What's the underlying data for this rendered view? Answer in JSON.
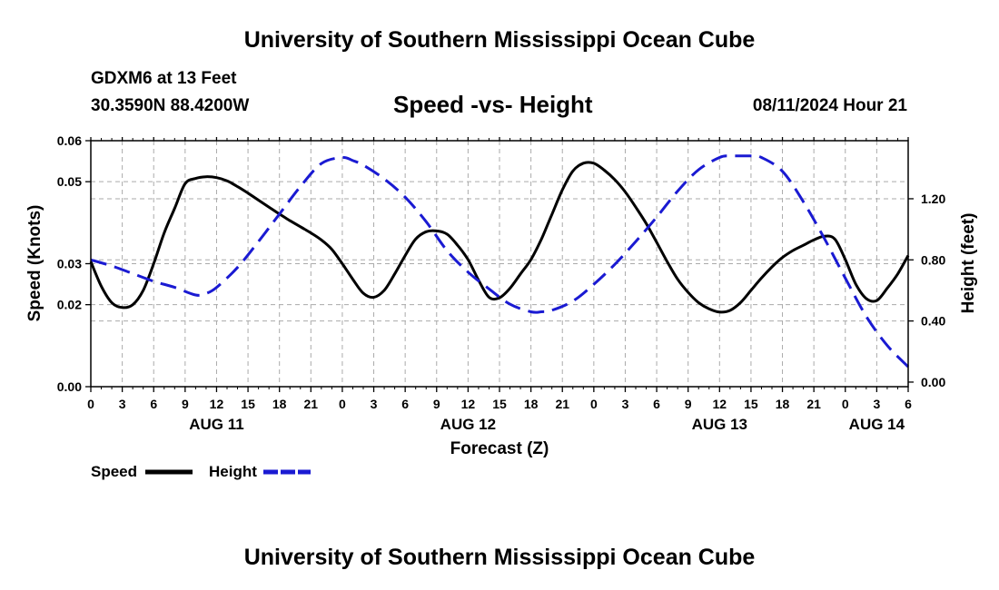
{
  "header": {
    "title": "University of Southern Mississippi Ocean Cube",
    "station": "GDXM6 at 13 Feet",
    "coordinates": "30.3590N  88.4200W",
    "subtitle": "Speed -vs- Height",
    "datetime": "08/11/2024 Hour 21"
  },
  "footer": {
    "title": "University of Southern Mississippi Ocean Cube"
  },
  "chart_data": {
    "type": "line",
    "title": "Speed -vs- Height",
    "xlabel": "Forecast (Z)",
    "ylabel": "Speed (Knots)",
    "y2label": "Height (feet)",
    "x_range_hours": [
      0,
      78
    ],
    "ylim": [
      0,
      0.06
    ],
    "y2lim": [
      -0.03,
      1.58
    ],
    "y_ticks": [
      "0.00",
      "0.02",
      "0.03",
      "0.05",
      "0.06"
    ],
    "y_tick_values": [
      0,
      0.02,
      0.03,
      0.05,
      0.06
    ],
    "y2_ticks": [
      "0.00",
      "0.40",
      "0.80",
      "1.20"
    ],
    "y2_tick_values": [
      0.0,
      0.4,
      0.8,
      1.2
    ],
    "x_ticks": [
      "0",
      "3",
      "6",
      "9",
      "12",
      "15",
      "18",
      "21",
      "0",
      "3",
      "6",
      "9",
      "12",
      "15",
      "18",
      "21",
      "0",
      "3",
      "6",
      "9",
      "12",
      "15",
      "18",
      "21",
      "0",
      "3",
      "6"
    ],
    "x_tick_hours": [
      0,
      3,
      6,
      9,
      12,
      15,
      18,
      21,
      24,
      27,
      30,
      33,
      36,
      39,
      42,
      45,
      48,
      51,
      54,
      57,
      60,
      63,
      66,
      69,
      72,
      75,
      78
    ],
    "date_labels": [
      {
        "label": "AUG 11",
        "hour": 12
      },
      {
        "label": "AUG 12",
        "hour": 36
      },
      {
        "label": "AUG 13",
        "hour": 60
      },
      {
        "label": "AUG 14",
        "hour": 75
      }
    ],
    "grid": true,
    "legend": [
      {
        "name": "Speed",
        "color": "#000000",
        "style": "solid"
      },
      {
        "name": "Height",
        "color": "#1a1ad2",
        "style": "dashed"
      }
    ],
    "series": [
      {
        "name": "Speed",
        "axis": "left",
        "color": "#000000",
        "x": [
          0,
          1,
          2,
          3,
          4,
          5,
          6,
          7,
          8,
          9,
          10,
          11,
          12,
          13,
          14,
          15,
          16,
          17,
          18,
          19,
          20,
          21,
          22,
          23,
          24,
          25,
          26,
          27,
          28,
          29,
          30,
          31,
          32,
          33,
          34,
          35,
          36,
          37,
          38,
          39,
          40,
          41,
          42,
          43,
          44,
          45,
          46,
          47,
          48,
          49,
          50,
          51,
          52,
          53,
          54,
          55,
          56,
          57,
          58,
          59,
          60,
          61,
          62,
          63,
          64,
          65,
          66,
          67,
          68,
          69,
          70,
          71,
          72,
          73,
          74,
          75,
          76,
          77,
          78
        ],
        "values": [
          0.0305,
          0.0245,
          0.0205,
          0.0193,
          0.02,
          0.0235,
          0.03,
          0.0375,
          0.0435,
          0.0495,
          0.0508,
          0.0512,
          0.051,
          0.0502,
          0.0488,
          0.0472,
          0.0455,
          0.0438,
          0.0421,
          0.0405,
          0.039,
          0.0375,
          0.0358,
          0.0335,
          0.03,
          0.0262,
          0.0228,
          0.0218,
          0.0235,
          0.0275,
          0.032,
          0.036,
          0.0378,
          0.038,
          0.0372,
          0.0345,
          0.031,
          0.026,
          0.0218,
          0.0217,
          0.024,
          0.0275,
          0.031,
          0.036,
          0.042,
          0.048,
          0.0526,
          0.0545,
          0.0545,
          0.0528,
          0.0505,
          0.0475,
          0.0438,
          0.0398,
          0.0352,
          0.0305,
          0.0262,
          0.023,
          0.0205,
          0.019,
          0.0182,
          0.0186,
          0.0205,
          0.0235,
          0.0265,
          0.0292,
          0.0315,
          0.0332,
          0.0345,
          0.0358,
          0.0367,
          0.036,
          0.031,
          0.025,
          0.0215,
          0.021,
          0.024,
          0.0275,
          0.032
        ]
      },
      {
        "name": "Height",
        "axis": "right",
        "color": "#1a1ad2",
        "x": [
          0,
          2,
          4,
          6,
          8,
          10,
          11,
          12,
          14,
          16,
          18,
          20,
          22,
          24,
          25,
          26,
          28,
          30,
          32,
          34,
          36,
          38,
          40,
          42,
          43,
          44,
          46,
          48,
          50,
          52,
          54,
          56,
          58,
          60,
          61,
          62,
          63,
          64,
          66,
          68,
          70,
          72,
          74,
          76,
          78
        ],
        "values": [
          0.8,
          0.76,
          0.71,
          0.66,
          0.62,
          0.57,
          0.58,
          0.62,
          0.75,
          0.92,
          1.1,
          1.28,
          1.43,
          1.47,
          1.45,
          1.42,
          1.33,
          1.21,
          1.05,
          0.86,
          0.72,
          0.61,
          0.51,
          0.46,
          0.46,
          0.47,
          0.53,
          0.64,
          0.77,
          0.92,
          1.08,
          1.25,
          1.39,
          1.47,
          1.48,
          1.48,
          1.48,
          1.47,
          1.38,
          1.18,
          0.94,
          0.68,
          0.43,
          0.24,
          0.1
        ]
      }
    ]
  }
}
